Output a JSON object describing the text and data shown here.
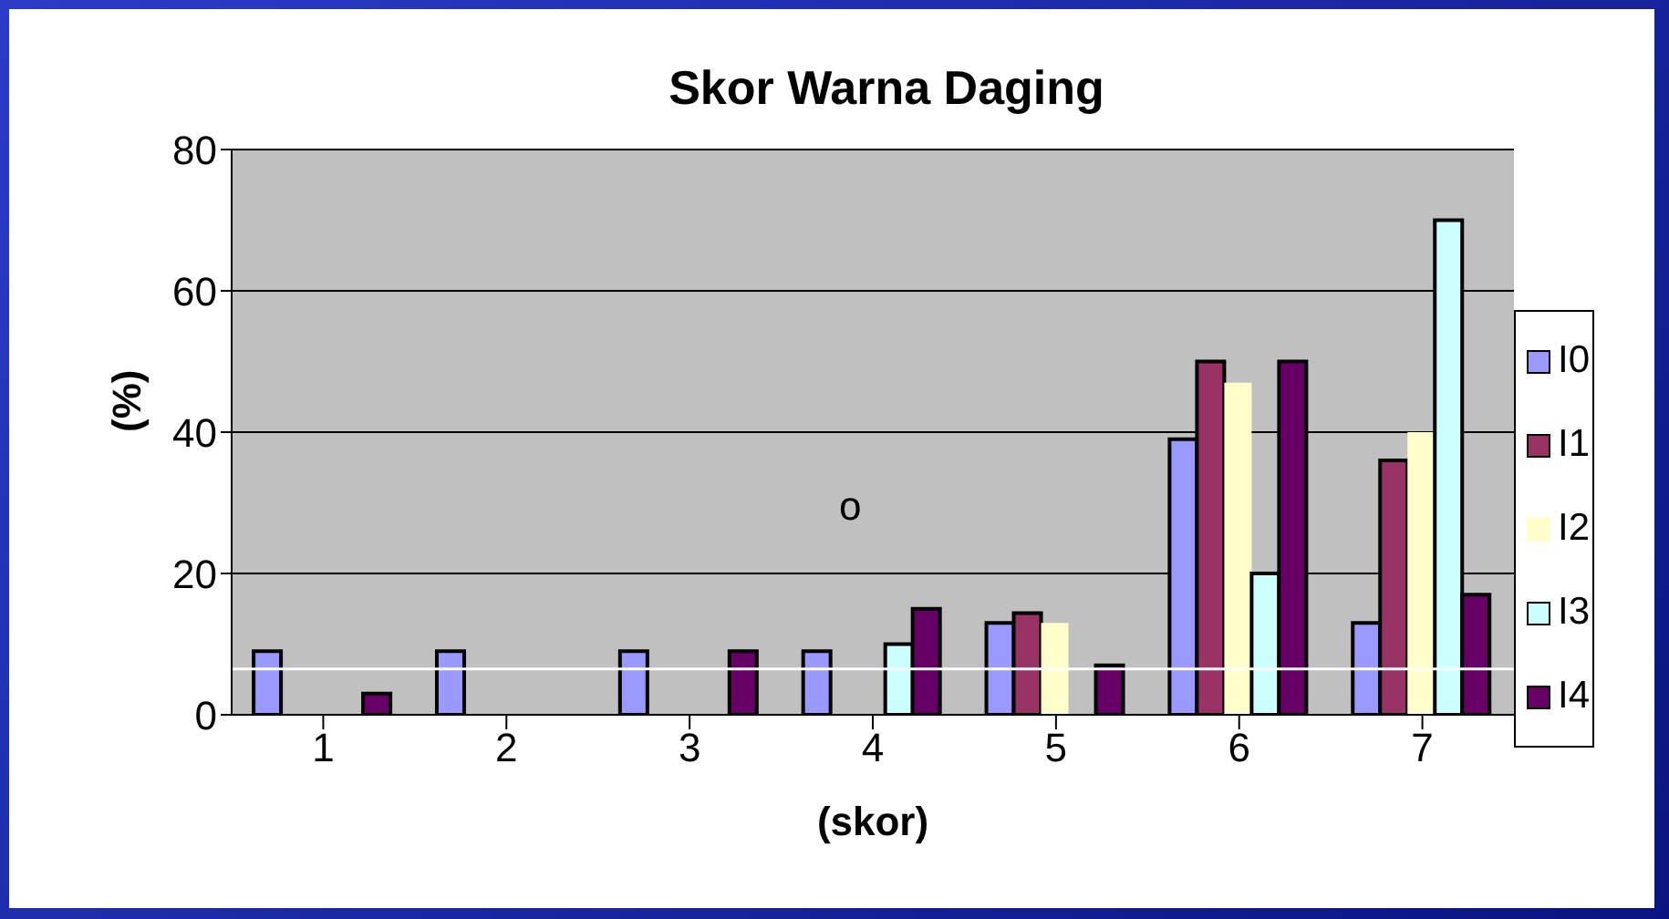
{
  "chart_data": {
    "type": "bar",
    "title": "Skor Warna Daging",
    "xlabel": "(skor)",
    "ylabel": "(%)",
    "categories": [
      "1",
      "2",
      "3",
      "4",
      "5",
      "6",
      "7"
    ],
    "series": [
      {
        "name": "I0",
        "color": "#9999ff",
        "values": [
          9,
          9,
          9,
          9,
          13,
          39,
          13
        ]
      },
      {
        "name": "I1",
        "color": "#993366",
        "values": [
          null,
          null,
          null,
          null,
          14.4,
          50,
          36
        ]
      },
      {
        "name": "I2",
        "color": "#ffffcc",
        "values": [
          null,
          null,
          null,
          null,
          13,
          47,
          40
        ]
      },
      {
        "name": "I3",
        "color": "#ccffff",
        "values": [
          null,
          null,
          null,
          10,
          null,
          20,
          70
        ]
      },
      {
        "name": "I4",
        "color": "#660066",
        "values": [
          3,
          null,
          9,
          15,
          7,
          50,
          17
        ]
      }
    ],
    "ylim": [
      0,
      80
    ],
    "yticks": [
      0,
      20,
      40,
      60,
      80
    ],
    "grid": "y",
    "legend": "right",
    "ref_lines": [
      {
        "axis": "y",
        "value": 6.5,
        "color": "#ffffff"
      }
    ],
    "annotations": [
      "o"
    ]
  }
}
